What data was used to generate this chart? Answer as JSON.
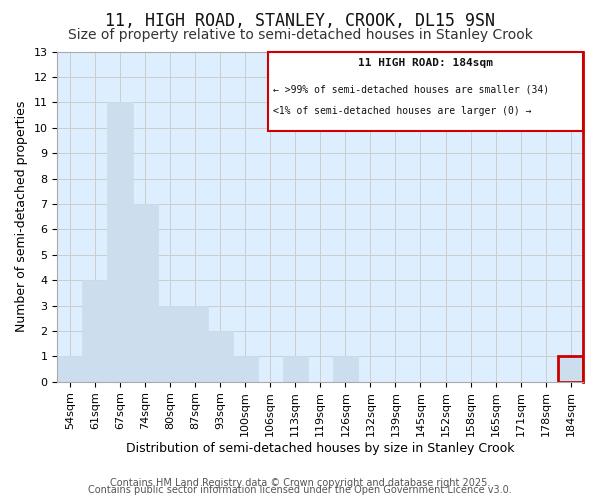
{
  "title": "11, HIGH ROAD, STANLEY, CROOK, DL15 9SN",
  "subtitle": "Size of property relative to semi-detached houses in Stanley Crook",
  "xlabel": "Distribution of semi-detached houses by size in Stanley Crook",
  "ylabel": "Number of semi-detached properties",
  "categories": [
    "54sqm",
    "61sqm",
    "67sqm",
    "74sqm",
    "80sqm",
    "87sqm",
    "93sqm",
    "100sqm",
    "106sqm",
    "113sqm",
    "119sqm",
    "126sqm",
    "132sqm",
    "139sqm",
    "145sqm",
    "152sqm",
    "158sqm",
    "165sqm",
    "171sqm",
    "178sqm",
    "184sqm"
  ],
  "values": [
    1,
    4,
    11,
    7,
    3,
    3,
    2,
    1,
    0,
    1,
    0,
    1,
    0,
    0,
    0,
    0,
    0,
    0,
    0,
    0,
    1
  ],
  "bar_color": "#ccdded",
  "bar_edge_color": "#ccdded",
  "highlight_index": 20,
  "highlight_bar_edge_color": "#cc0000",
  "ylim": [
    0,
    13
  ],
  "yticks": [
    0,
    1,
    2,
    3,
    4,
    5,
    6,
    7,
    8,
    9,
    10,
    11,
    12,
    13
  ],
  "legend_title": "11 HIGH ROAD: 184sqm",
  "legend_line1": "← >99% of semi-detached houses are smaller (34)",
  "legend_line2": "<1% of semi-detached houses are larger (0) →",
  "legend_box_edge_color": "#cc0000",
  "right_spine_color": "#cc0000",
  "footer_line1": "Contains HM Land Registry data © Crown copyright and database right 2025.",
  "footer_line2": "Contains public sector information licensed under the Open Government Licence v3.0.",
  "grid_color": "#cccccc",
  "plot_bg_color": "#ddeeff",
  "background_color": "#ffffff",
  "title_fontsize": 12,
  "subtitle_fontsize": 10,
  "axis_label_fontsize": 9,
  "tick_fontsize": 8,
  "footer_fontsize": 7
}
